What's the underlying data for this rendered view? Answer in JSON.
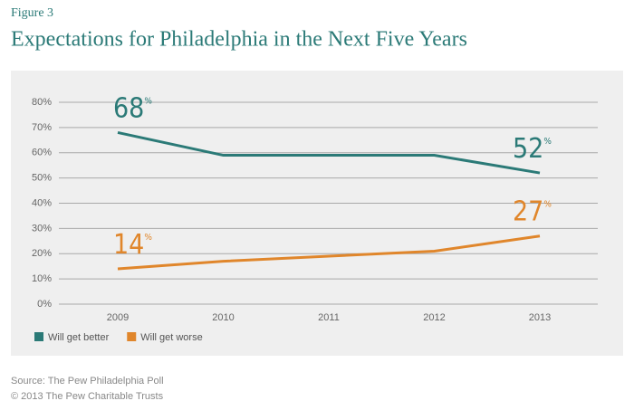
{
  "chart_data": {
    "type": "line",
    "figure_label": "Figure 3",
    "title": "Expectations for Philadelphia in the Next Five Years",
    "categories": [
      "2009",
      "2010",
      "2011",
      "2012",
      "2013"
    ],
    "series": [
      {
        "name": "Will get better",
        "color": "#2b7a77",
        "values": [
          68,
          59,
          59,
          59,
          52
        ],
        "value_labels": [
          "68%",
          null,
          null,
          null,
          "52%"
        ]
      },
      {
        "name": "Will get worse",
        "color": "#e0862b",
        "values": [
          14,
          17,
          19,
          21,
          27
        ],
        "value_labels": [
          "14%",
          null,
          null,
          null,
          "27%"
        ]
      }
    ],
    "ylim": [
      0,
      80
    ],
    "yticks": [
      {
        "value": 0,
        "label": "0%"
      },
      {
        "value": 10,
        "label": "10%"
      },
      {
        "value": 20,
        "label": "20%"
      },
      {
        "value": 30,
        "label": "30%"
      },
      {
        "value": 40,
        "label": "40%"
      },
      {
        "value": 50,
        "label": "50%"
      },
      {
        "value": 60,
        "label": "60%"
      },
      {
        "value": 70,
        "label": "70%"
      },
      {
        "value": 80,
        "label": "80%"
      }
    ],
    "grid": true,
    "source": "Source: The Pew Philadelphia Poll",
    "copyright": "© 2013 The Pew Charitable Trusts"
  }
}
